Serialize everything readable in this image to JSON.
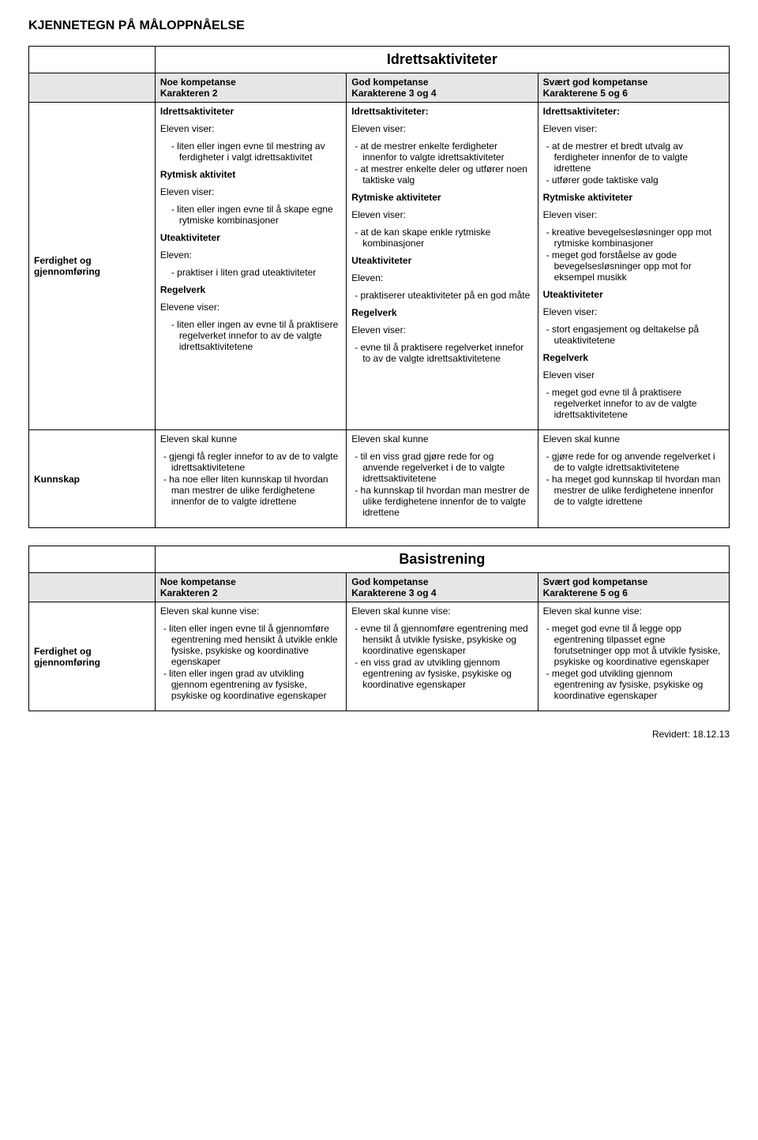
{
  "page_title": "KJENNETEGN PÅ MÅLOPPNÅELSE",
  "footer": "Revidert: 18.12.13",
  "headers": {
    "noe": {
      "l1": "Noe kompetanse",
      "l2": "Karakteren 2"
    },
    "god": {
      "l1": "God kompetanse",
      "l2": "Karakterene 3 og 4"
    },
    "svart": {
      "l1": "Svært god kompetanse",
      "l2": "Karakterene 5 og 6"
    }
  },
  "t1": {
    "title": "Idrettsaktiviteter",
    "row1_label": "Ferdighet og gjennomføring",
    "row2_label": "Kunnskap",
    "noe_r1": {
      "s1_head": "Idrettsaktiviteter",
      "s1_lead": "Eleven viser:",
      "s1_i1": "liten eller ingen evne til mestring av ferdigheter i valgt idrettsaktivitet",
      "s2_head": "Rytmisk aktivitet",
      "s2_lead": "Eleven viser:",
      "s2_i1": "liten eller ingen evne til å skape egne rytmiske kombinasjoner",
      "s3_head": "Uteaktiviteter",
      "s3_lead": "Eleven:",
      "s3_i1": "praktiser i liten grad uteaktiviteter",
      "s4_head": "Regelverk",
      "s4_lead": "Elevene viser:",
      "s4_i1": "liten eller ingen av evne til å praktisere regelverket innefor to av de valgte idrettsaktivitetene"
    },
    "god_r1": {
      "s1_head": "Idrettsaktiviteter:",
      "s1_lead": "Eleven viser:",
      "s1_i1": "- at de mestrer enkelte ferdigheter innenfor to valgte idrettsaktiviteter",
      "s1_i2": "- at mestrer enkelte deler og utfører noen taktiske valg",
      "s2_head": "Rytmiske aktiviteter",
      "s2_lead": "Eleven viser:",
      "s2_i1": "- at de kan skape enkle rytmiske kombinasjoner",
      "s3_head": "Uteaktiviteter",
      "s3_lead": "Eleven:",
      "s3_i1": "- praktiserer uteaktiviteter på en god måte",
      "s4_head": "Regelverk",
      "s4_lead": "Eleven viser:",
      "s4_i1": "- evne til å praktisere regelverket innefor to av de valgte idrettsaktivitetene"
    },
    "svart_r1": {
      "s1_head": "Idrettsaktiviteter:",
      "s1_lead": "Eleven viser:",
      "s1_i1": "- at de mestrer et bredt utvalg av ferdigheter innenfor de to valgte idrettene",
      "s1_i2": "- utfører gode taktiske valg",
      "s2_head": "Rytmiske aktiviteter",
      "s2_lead": "Eleven viser:",
      "s2_i1": "- kreative bevegelsesløsninger opp mot rytmiske kombinasjoner",
      "s2_i2": "- meget god forståelse av gode bevegelsesløsninger opp mot for eksempel musikk",
      "s3_head": "Uteaktiviteter",
      "s3_lead": "Eleven viser:",
      "s3_i1": "- stort engasjement og deltakelse på uteaktivitetene",
      "s4_head": "Regelverk",
      "s4_lead": "Eleven viser",
      "s4_i1": "- meget god evne til å praktisere regelverket innefor to av de valgte idrettsaktivitetene"
    },
    "noe_r2": {
      "lead": "Eleven skal kunne",
      "i1": "- gjengi få regler innefor to av de to valgte idrettsaktivitetene",
      "i2": "- ha noe eller liten kunnskap til hvordan man mestrer de ulike ferdighetene innenfor de to valgte idrettene"
    },
    "god_r2": {
      "lead": "Eleven skal kunne",
      "i1": "- til en viss grad gjøre rede for og anvende regelverket i de to valgte idrettsaktivitetene",
      "i2": "- ha kunnskap til hvordan man mestrer de ulike ferdighetene innenfor de to valgte idrettene"
    },
    "svart_r2": {
      "lead": "Eleven skal kunne",
      "i1": "- gjøre rede for og anvende regelverket i de to valgte idrettsaktivitetene",
      "i2": "- ha meget god kunnskap til hvordan man mestrer de ulike ferdighetene innenfor de to valgte idrettene"
    }
  },
  "t2": {
    "title": "Basistrening",
    "row1_label": "Ferdighet og gjennomføring",
    "noe_r1": {
      "lead": "Eleven skal kunne vise:",
      "i1": "- liten eller ingen evne til å gjennomføre egentrening med hensikt å utvikle enkle fysiske, psykiske og koordinative egenskaper",
      "i2": "- liten eller ingen grad av utvikling gjennom egentrening av fysiske, psykiske og koordinative egenskaper"
    },
    "god_r1": {
      "lead": "Eleven skal kunne vise:",
      "i1": "- evne til å gjennomføre egentrening med hensikt å utvikle fysiske, psykiske og koordinative egenskaper",
      "i2": "- en viss grad av utvikling gjennom egentrening av fysiske, psykiske og koordinative egenskaper"
    },
    "svart_r1": {
      "lead": "Eleven skal kunne vise:",
      "i1": "- meget god evne til å legge opp egentrening tilpasset egne forutsetninger opp mot å utvikle fysiske, psykiske og koordinative egenskaper",
      "i2": "- meget god utvikling gjennom egentrening av fysiske, psykiske og koordinative egenskaper"
    }
  }
}
